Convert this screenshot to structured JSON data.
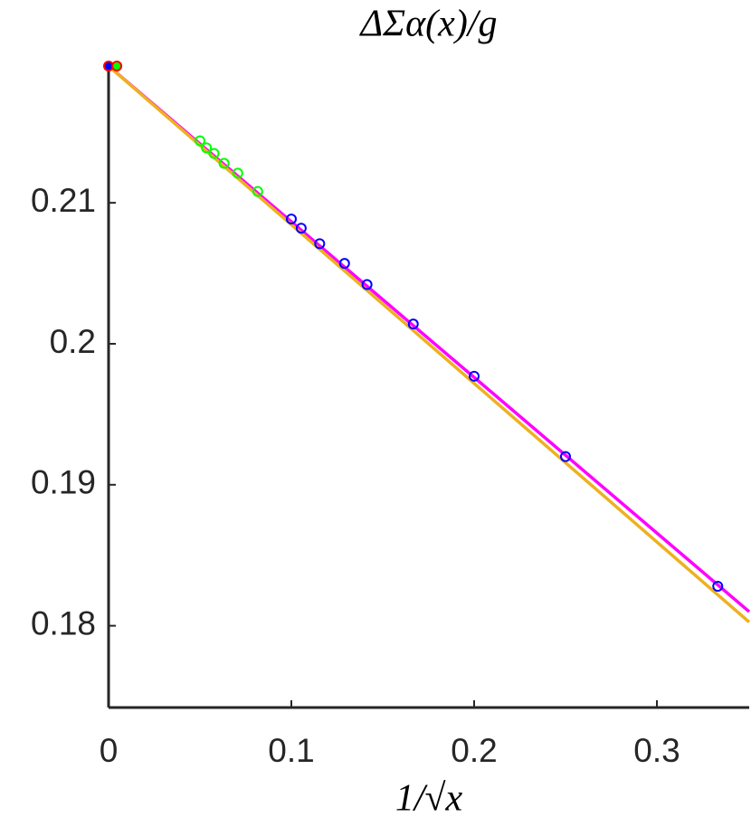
{
  "chart_data": {
    "type": "scatter",
    "title": "ΔΣα(x)/g",
    "x_label": "1/√x",
    "xlim": [
      0,
      0.3505
    ],
    "ylim": [
      0.1742,
      0.2197
    ],
    "xticks": [
      0,
      0.1,
      0.2,
      0.3
    ],
    "yticks": [
      0.18,
      0.19,
      0.2,
      0.21
    ],
    "series": [
      {
        "style": "line",
        "color": "#ff00ff",
        "x": [
          0,
          0.3505
        ],
        "values": [
          0.2197,
          0.181
        ]
      },
      {
        "style": "line",
        "color": "#edb120",
        "x": [
          0,
          0.3505
        ],
        "values": [
          0.2197,
          0.18026
        ]
      },
      {
        "style": "marker",
        "color": "#00ff00",
        "x": [
          0.05,
          0.0535,
          0.0577,
          0.0632,
          0.0707,
          0.0816
        ],
        "values": [
          0.2144,
          0.2139,
          0.2135,
          0.2128,
          0.2121,
          0.2108
        ]
      },
      {
        "style": "marker",
        "color": "#0000ff",
        "x": [
          0.1,
          0.1054,
          0.1155,
          0.1291,
          0.1414,
          0.1667,
          0.2,
          0.25,
          0.3333
        ],
        "values": [
          0.20885,
          0.2082,
          0.2071,
          0.2057,
          0.2042,
          0.2014,
          0.1977,
          0.192,
          0.1828
        ]
      },
      {
        "style": "marker",
        "color": "#ff0000",
        "fill": "#0000ff",
        "x": [
          0
        ],
        "values": [
          0.2197
        ]
      },
      {
        "style": "marker",
        "color": "#ff0000",
        "fill": "#00ff00",
        "x": [
          0.0045
        ],
        "values": [
          0.2197
        ]
      }
    ]
  }
}
